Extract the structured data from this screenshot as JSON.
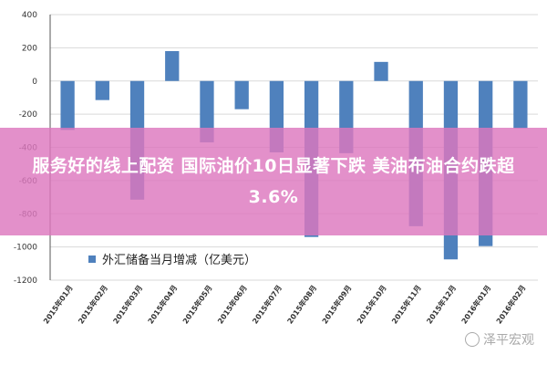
{
  "headline": "服务好的线上配资 国际油价10日显著下跌 美油布油合约跌超3.6%",
  "watermark": "泽平宏观",
  "chart_data": {
    "type": "bar",
    "categories": [
      "2015年01月",
      "2015年02月",
      "2015年03月",
      "2015年04月",
      "2015年05月",
      "2015年06月",
      "2015年07月",
      "2015年08月",
      "2015年09月",
      "2015年10月",
      "2015年11月",
      "2015年12月",
      "2016年01月",
      "2016年02月"
    ],
    "series": [
      {
        "name": "外汇储备当月增减（亿美元）",
        "values": [
          -295,
          -115,
          -715,
          180,
          -370,
          -170,
          -430,
          -940,
          -435,
          115,
          -875,
          -1075,
          -995,
          -285
        ]
      }
    ],
    "ylim": [
      -1200,
      400
    ],
    "yticks": [
      400,
      200,
      0,
      -200,
      -400,
      -600,
      -800,
      -1000,
      -1200
    ],
    "grid": true,
    "legend_position": "bottom-left",
    "bar_color": "#4f81bd"
  }
}
